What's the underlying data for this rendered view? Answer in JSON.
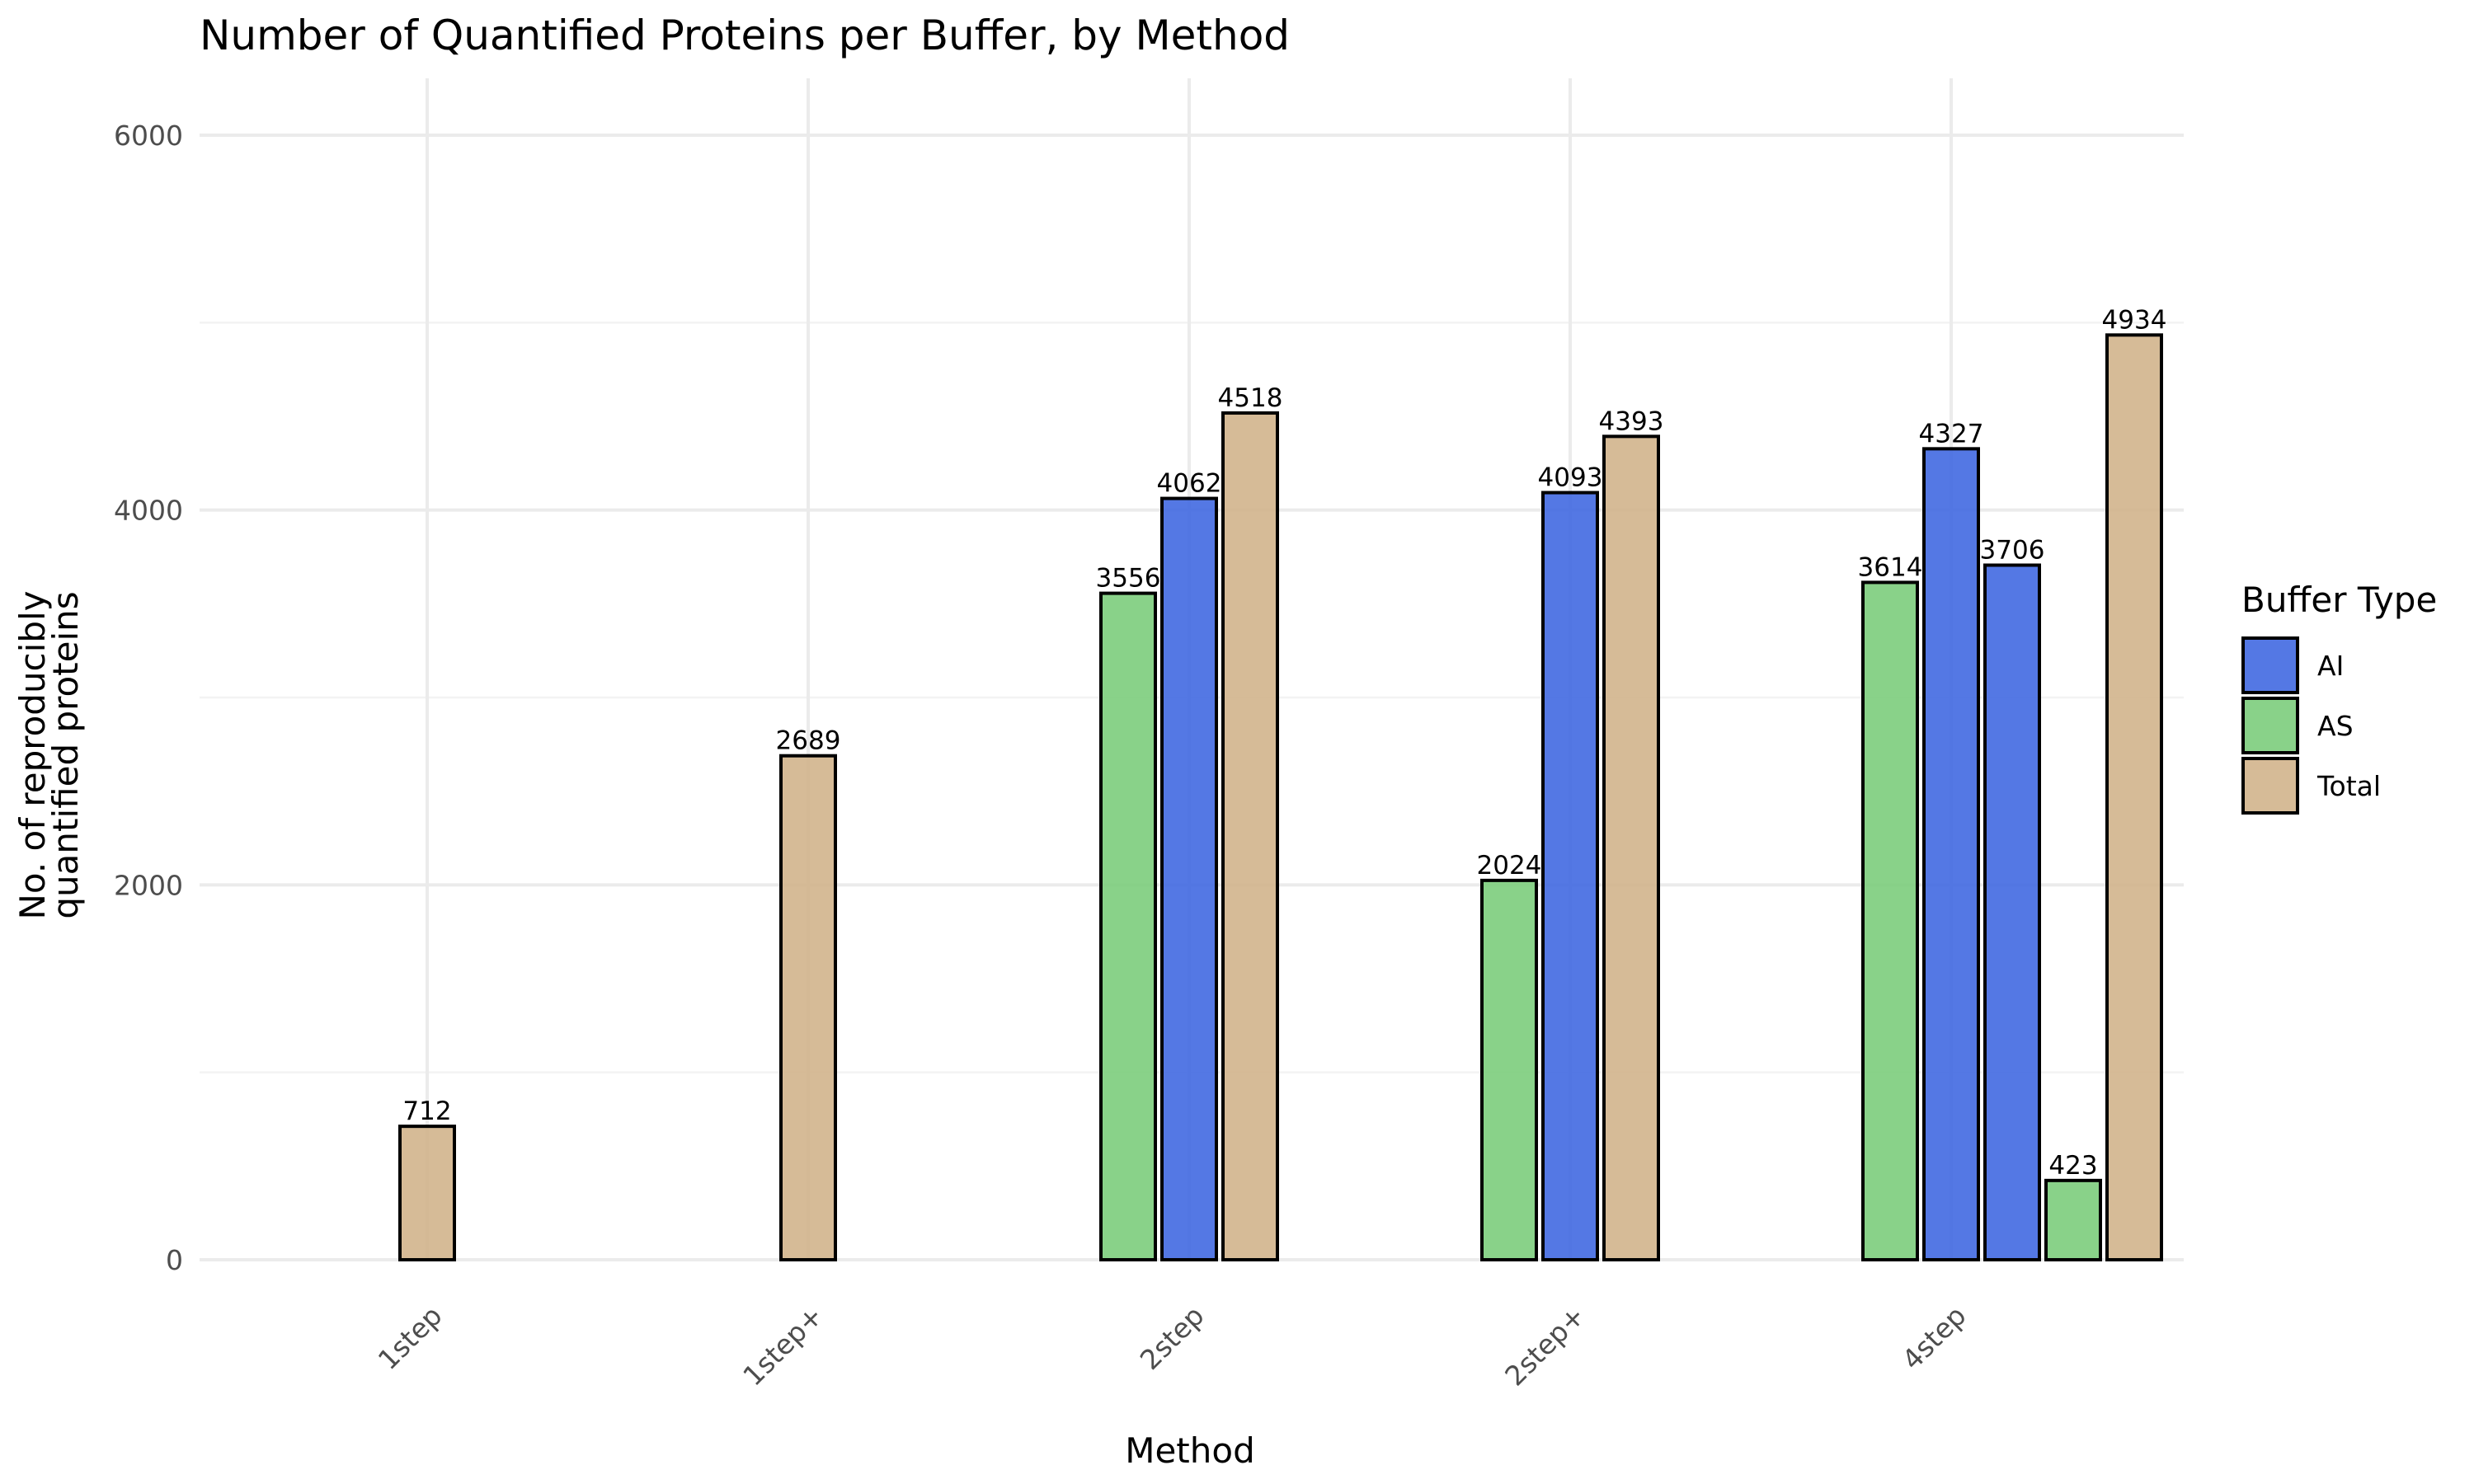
{
  "chart_data": {
    "type": "bar",
    "title": "Number of Quantified Proteins per Buffer, by Method",
    "xlabel": "Method",
    "ylabel_lines": [
      "No. of reproducibly",
      "quantified proteins"
    ],
    "ylim": [
      0,
      6000
    ],
    "y_ticks": [
      0,
      2000,
      4000,
      6000
    ],
    "categories": [
      "1step",
      "1step+",
      "2step",
      "2step+",
      "4step"
    ],
    "legend": {
      "title": "Buffer Type",
      "position": "right",
      "entries": [
        {
          "name": "AI",
          "color": "#4169e1"
        },
        {
          "name": "AS",
          "color": "#7ccd7c"
        },
        {
          "name": "Total",
          "color": "#d2b48c"
        }
      ]
    },
    "grid": true,
    "groups": [
      {
        "category": "1step",
        "bars": [
          {
            "buffer": "Total",
            "value": 712
          }
        ]
      },
      {
        "category": "1step+",
        "bars": [
          {
            "buffer": "Total",
            "value": 2689
          }
        ]
      },
      {
        "category": "2step",
        "bars": [
          {
            "buffer": "AS",
            "value": 3556
          },
          {
            "buffer": "AI",
            "value": 4062
          },
          {
            "buffer": "Total",
            "value": 4518
          }
        ]
      },
      {
        "category": "2step+",
        "bars": [
          {
            "buffer": "AS",
            "value": 2024
          },
          {
            "buffer": "AI",
            "value": 4093
          },
          {
            "buffer": "Total",
            "value": 4393
          }
        ]
      },
      {
        "category": "4step",
        "bars": [
          {
            "buffer": "AS",
            "value": 3614
          },
          {
            "buffer": "AI",
            "value": 4327
          },
          {
            "buffer": "AI",
            "value": 3706
          },
          {
            "buffer": "AS",
            "value": 423
          },
          {
            "buffer": "Total",
            "value": 4934
          }
        ]
      }
    ]
  }
}
